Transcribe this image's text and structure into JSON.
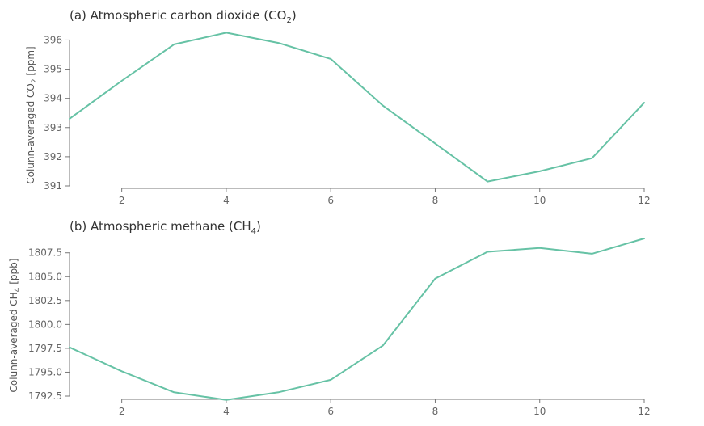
{
  "colors": {
    "series": "#66c2a5"
  },
  "chart_data": [
    {
      "type": "line",
      "title": "(a) Atmospheric carbon dioxide (CO",
      "title_sub": "2",
      "title_end": ")",
      "ylabel": "Colunn-averaged CO",
      "ylabel_sub": "2",
      "ylabel_end": " [ppm]",
      "xlim": [
        1,
        12
      ],
      "ylim": [
        391,
        396.4
      ],
      "x_ticks": [
        2,
        4,
        6,
        8,
        10,
        12
      ],
      "y_ticks": [
        391,
        392,
        393,
        394,
        395,
        396
      ],
      "y_tick_labels": [
        "391",
        "392",
        "393",
        "394",
        "395",
        "396"
      ],
      "x": [
        1,
        2,
        3,
        4,
        5,
        6,
        7,
        8,
        9,
        10,
        11,
        12
      ],
      "values": [
        393.3,
        394.6,
        395.85,
        396.25,
        395.9,
        395.35,
        393.75,
        392.45,
        391.15,
        391.5,
        391.95,
        393.85
      ]
    },
    {
      "type": "line",
      "title": "(b) Atmospheric methane (CH",
      "title_sub": "4",
      "title_end": ")",
      "ylabel": "Colunn-averaged CH",
      "ylabel_sub": "4",
      "ylabel_end": " [ppb]",
      "xlim": [
        1,
        12
      ],
      "ylim": [
        1792.5,
        1809
      ],
      "x_ticks": [
        2,
        4,
        6,
        8,
        10,
        12
      ],
      "y_ticks": [
        1792.5,
        1795.0,
        1797.5,
        1800.0,
        1802.5,
        1805.0,
        1807.5
      ],
      "y_tick_labels": [
        "1792.5",
        "1795.0",
        "1797.5",
        "1800.0",
        "1802.5",
        "1805.0",
        "1807.5"
      ],
      "x": [
        1,
        2,
        3,
        4,
        5,
        6,
        7,
        8,
        9,
        10,
        11,
        12
      ],
      "values": [
        1797.6,
        1795.1,
        1792.9,
        1792.1,
        1792.9,
        1794.2,
        1797.8,
        1804.8,
        1807.6,
        1808.0,
        1807.4,
        1809.0
      ]
    }
  ]
}
